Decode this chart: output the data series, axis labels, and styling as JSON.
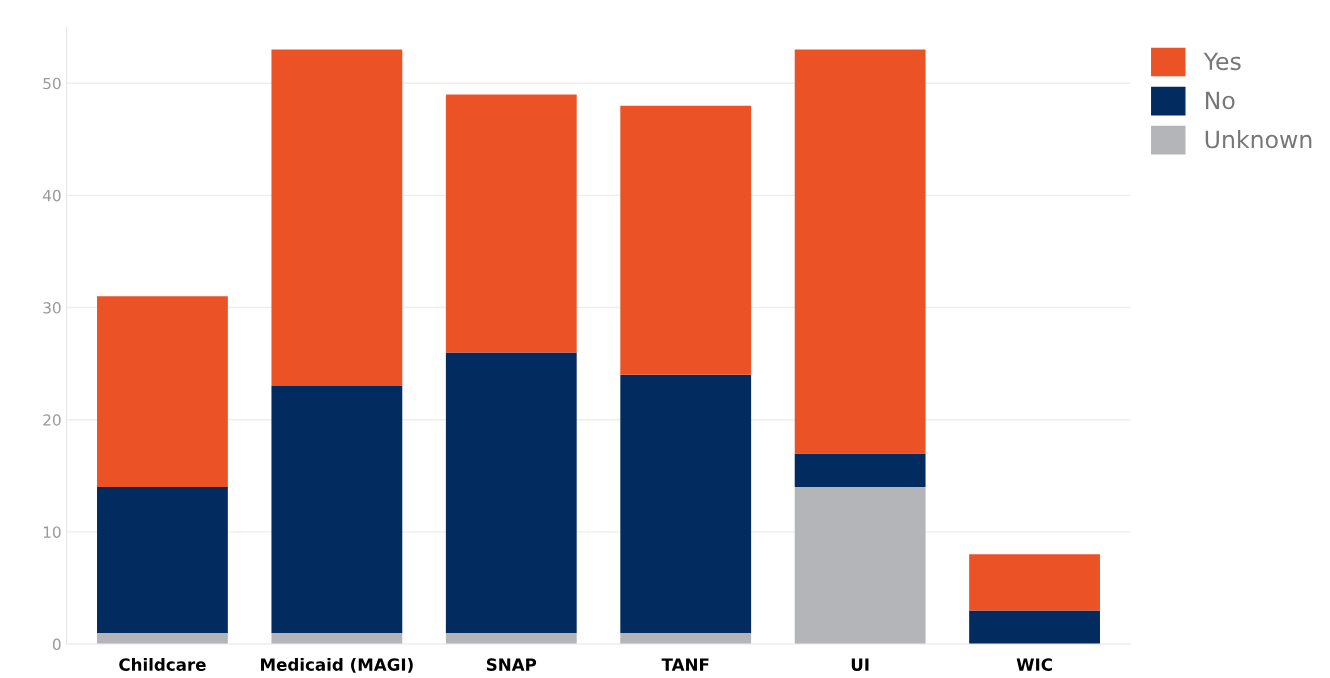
{
  "chart_data": {
    "type": "bar",
    "stacked": true,
    "categories": [
      "Childcare",
      "Medicaid (MAGI)",
      "SNAP",
      "TANF",
      "UI",
      "WIC"
    ],
    "series": [
      {
        "name": "Unknown",
        "color": "#b4b5b8",
        "values": [
          1,
          1,
          1,
          1,
          14,
          0
        ]
      },
      {
        "name": "No",
        "color": "#022b60",
        "values": [
          13,
          22,
          25,
          23,
          3,
          3
        ]
      },
      {
        "name": "Yes",
        "color": "#eb5226",
        "values": [
          17,
          30,
          23,
          24,
          36,
          5
        ]
      }
    ],
    "ylim": [
      0,
      55
    ],
    "yticks": [
      0,
      10,
      20,
      30,
      40,
      50
    ],
    "grid": "y",
    "legend": "top right"
  }
}
